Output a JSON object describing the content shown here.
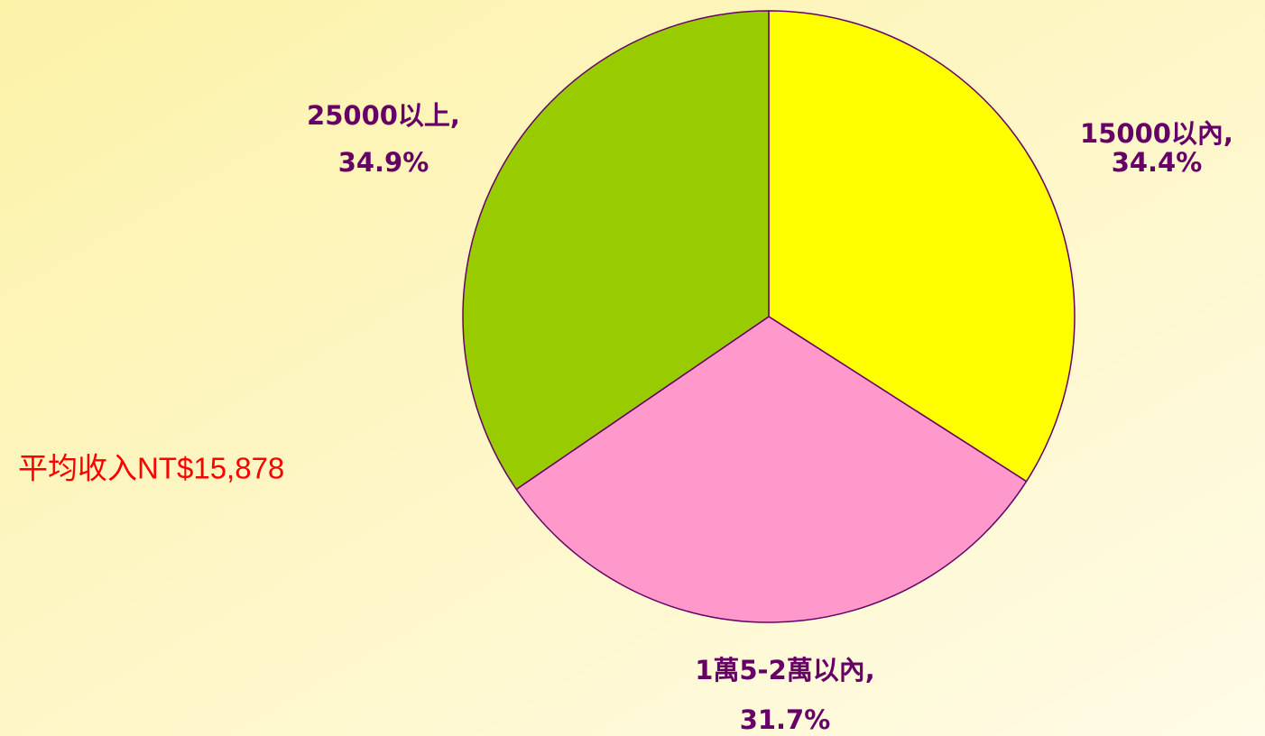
{
  "chart_data": {
    "type": "pie",
    "categories": [
      "15000以內,",
      "1萬5-2萬以內,",
      "25000以上,"
    ],
    "values": [
      34.4,
      31.7,
      34.9
    ],
    "value_labels": [
      "34.4%",
      "31.7%",
      "34.9%"
    ],
    "colors": [
      "#ffff00",
      "#ff99cc",
      "#99cc00"
    ],
    "annotation": "平均收入NT$15,878"
  }
}
